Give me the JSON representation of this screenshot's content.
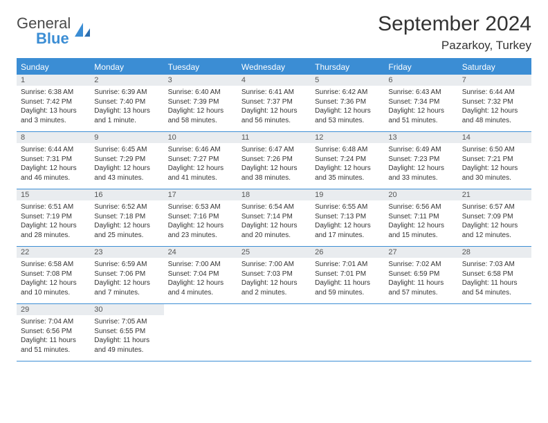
{
  "brand": {
    "text1": "General",
    "text2": "Blue"
  },
  "title": "September 2024",
  "location": "Pazarkoy, Turkey",
  "colors": {
    "header_bg": "#3b8dd4",
    "header_text": "#ffffff",
    "daynum_bg": "#e9ecef",
    "border": "#3b8dd4",
    "text": "#333333",
    "logo_gray": "#4a4a4a",
    "logo_blue": "#3b8dd4",
    "background": "#ffffff"
  },
  "typography": {
    "title_fontsize": 30,
    "location_fontsize": 17,
    "header_fontsize": 12,
    "daynum_fontsize": 11,
    "content_fontsize": 10
  },
  "day_names": [
    "Sunday",
    "Monday",
    "Tuesday",
    "Wednesday",
    "Thursday",
    "Friday",
    "Saturday"
  ],
  "weeks": [
    [
      {
        "n": "1",
        "sr": "Sunrise: 6:38 AM",
        "ss": "Sunset: 7:42 PM",
        "dl": "Daylight: 13 hours and 3 minutes."
      },
      {
        "n": "2",
        "sr": "Sunrise: 6:39 AM",
        "ss": "Sunset: 7:40 PM",
        "dl": "Daylight: 13 hours and 1 minute."
      },
      {
        "n": "3",
        "sr": "Sunrise: 6:40 AM",
        "ss": "Sunset: 7:39 PM",
        "dl": "Daylight: 12 hours and 58 minutes."
      },
      {
        "n": "4",
        "sr": "Sunrise: 6:41 AM",
        "ss": "Sunset: 7:37 PM",
        "dl": "Daylight: 12 hours and 56 minutes."
      },
      {
        "n": "5",
        "sr": "Sunrise: 6:42 AM",
        "ss": "Sunset: 7:36 PM",
        "dl": "Daylight: 12 hours and 53 minutes."
      },
      {
        "n": "6",
        "sr": "Sunrise: 6:43 AM",
        "ss": "Sunset: 7:34 PM",
        "dl": "Daylight: 12 hours and 51 minutes."
      },
      {
        "n": "7",
        "sr": "Sunrise: 6:44 AM",
        "ss": "Sunset: 7:32 PM",
        "dl": "Daylight: 12 hours and 48 minutes."
      }
    ],
    [
      {
        "n": "8",
        "sr": "Sunrise: 6:44 AM",
        "ss": "Sunset: 7:31 PM",
        "dl": "Daylight: 12 hours and 46 minutes."
      },
      {
        "n": "9",
        "sr": "Sunrise: 6:45 AM",
        "ss": "Sunset: 7:29 PM",
        "dl": "Daylight: 12 hours and 43 minutes."
      },
      {
        "n": "10",
        "sr": "Sunrise: 6:46 AM",
        "ss": "Sunset: 7:27 PM",
        "dl": "Daylight: 12 hours and 41 minutes."
      },
      {
        "n": "11",
        "sr": "Sunrise: 6:47 AM",
        "ss": "Sunset: 7:26 PM",
        "dl": "Daylight: 12 hours and 38 minutes."
      },
      {
        "n": "12",
        "sr": "Sunrise: 6:48 AM",
        "ss": "Sunset: 7:24 PM",
        "dl": "Daylight: 12 hours and 35 minutes."
      },
      {
        "n": "13",
        "sr": "Sunrise: 6:49 AM",
        "ss": "Sunset: 7:23 PM",
        "dl": "Daylight: 12 hours and 33 minutes."
      },
      {
        "n": "14",
        "sr": "Sunrise: 6:50 AM",
        "ss": "Sunset: 7:21 PM",
        "dl": "Daylight: 12 hours and 30 minutes."
      }
    ],
    [
      {
        "n": "15",
        "sr": "Sunrise: 6:51 AM",
        "ss": "Sunset: 7:19 PM",
        "dl": "Daylight: 12 hours and 28 minutes."
      },
      {
        "n": "16",
        "sr": "Sunrise: 6:52 AM",
        "ss": "Sunset: 7:18 PM",
        "dl": "Daylight: 12 hours and 25 minutes."
      },
      {
        "n": "17",
        "sr": "Sunrise: 6:53 AM",
        "ss": "Sunset: 7:16 PM",
        "dl": "Daylight: 12 hours and 23 minutes."
      },
      {
        "n": "18",
        "sr": "Sunrise: 6:54 AM",
        "ss": "Sunset: 7:14 PM",
        "dl": "Daylight: 12 hours and 20 minutes."
      },
      {
        "n": "19",
        "sr": "Sunrise: 6:55 AM",
        "ss": "Sunset: 7:13 PM",
        "dl": "Daylight: 12 hours and 17 minutes."
      },
      {
        "n": "20",
        "sr": "Sunrise: 6:56 AM",
        "ss": "Sunset: 7:11 PM",
        "dl": "Daylight: 12 hours and 15 minutes."
      },
      {
        "n": "21",
        "sr": "Sunrise: 6:57 AM",
        "ss": "Sunset: 7:09 PM",
        "dl": "Daylight: 12 hours and 12 minutes."
      }
    ],
    [
      {
        "n": "22",
        "sr": "Sunrise: 6:58 AM",
        "ss": "Sunset: 7:08 PM",
        "dl": "Daylight: 12 hours and 10 minutes."
      },
      {
        "n": "23",
        "sr": "Sunrise: 6:59 AM",
        "ss": "Sunset: 7:06 PM",
        "dl": "Daylight: 12 hours and 7 minutes."
      },
      {
        "n": "24",
        "sr": "Sunrise: 7:00 AM",
        "ss": "Sunset: 7:04 PM",
        "dl": "Daylight: 12 hours and 4 minutes."
      },
      {
        "n": "25",
        "sr": "Sunrise: 7:00 AM",
        "ss": "Sunset: 7:03 PM",
        "dl": "Daylight: 12 hours and 2 minutes."
      },
      {
        "n": "26",
        "sr": "Sunrise: 7:01 AM",
        "ss": "Sunset: 7:01 PM",
        "dl": "Daylight: 11 hours and 59 minutes."
      },
      {
        "n": "27",
        "sr": "Sunrise: 7:02 AM",
        "ss": "Sunset: 6:59 PM",
        "dl": "Daylight: 11 hours and 57 minutes."
      },
      {
        "n": "28",
        "sr": "Sunrise: 7:03 AM",
        "ss": "Sunset: 6:58 PM",
        "dl": "Daylight: 11 hours and 54 minutes."
      }
    ],
    [
      {
        "n": "29",
        "sr": "Sunrise: 7:04 AM",
        "ss": "Sunset: 6:56 PM",
        "dl": "Daylight: 11 hours and 51 minutes."
      },
      {
        "n": "30",
        "sr": "Sunrise: 7:05 AM",
        "ss": "Sunset: 6:55 PM",
        "dl": "Daylight: 11 hours and 49 minutes."
      },
      null,
      null,
      null,
      null,
      null
    ]
  ]
}
